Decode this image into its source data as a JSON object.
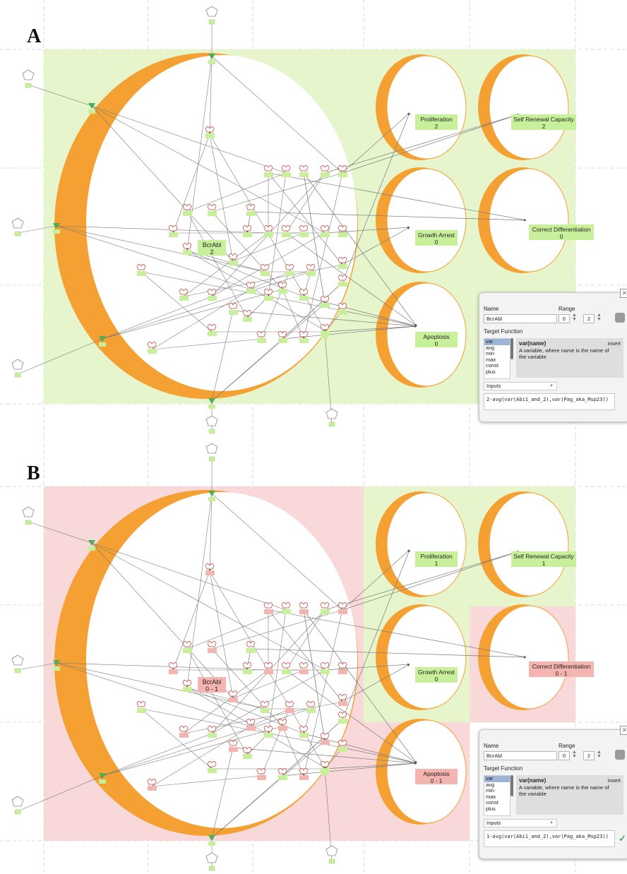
{
  "panels": [
    {
      "label": "A",
      "node_label": "BcrAbl",
      "node_value": "2",
      "background": "#e6f5cc",
      "outcomes": {
        "proliferation": {
          "name": "Proliferation",
          "value": "2"
        },
        "self_renewal": {
          "name": "Self Renewal Capacity",
          "value": "2"
        },
        "growth_arrest": {
          "name": "Growth Arrest",
          "value": "0"
        },
        "correct_diff": {
          "name": "Correct Differentiation",
          "value": "0"
        },
        "apoptosis": {
          "name": "Apoptosis",
          "value": "0"
        }
      },
      "editor": {
        "name_label": "Name",
        "name_value": "BcrAbl",
        "range_label": "Range",
        "range_min": "0",
        "range_max": "2",
        "target_function_label": "Target Function",
        "functions": [
          "var",
          "avg",
          "min",
          "max",
          "const",
          "plus"
        ],
        "selected_function": "var",
        "fn_title": "var(name)",
        "insert_label": "insert",
        "fn_description": "A variable, where name is the name of the variable",
        "inputs_label": "Inputs",
        "expression": "2-avg(var(Abi1_and_2),var(Pag_aka_Msp23))",
        "show_check": false
      }
    },
    {
      "label": "B",
      "node_label": "BcrAbl",
      "node_value": "0 - 1",
      "background": "#f8d8d8",
      "outcomes": {
        "proliferation": {
          "name": "Proliferation",
          "value": "1"
        },
        "self_renewal": {
          "name": "Self Renewal Capacity",
          "value": "1"
        },
        "growth_arrest": {
          "name": "Growth Arrest",
          "value": "0"
        },
        "correct_diff": {
          "name": "Correct Differentiation",
          "value": "0 - 1"
        },
        "apoptosis": {
          "name": "Apoptosis",
          "value": "0 - 1"
        }
      },
      "editor": {
        "name_label": "Name",
        "name_value": "BcrAbl",
        "range_label": "Range",
        "range_min": "0",
        "range_max": "2",
        "target_function_label": "Target Function",
        "functions": [
          "var",
          "avg",
          "min",
          "max",
          "const",
          "plus"
        ],
        "selected_function": "var",
        "fn_title": "var(name)",
        "insert_label": "insert",
        "fn_description": "A variable, where name is the name of the variable",
        "inputs_label": "Inputs",
        "expression": "1-avg(var(Abi1_and_2),var(Pag_aka_Msp23))",
        "show_check": true
      }
    }
  ],
  "colors": {
    "orange": "#f5a033",
    "green_region": "#e6f5cc",
    "red_region": "#f8d8d8",
    "green_label": "#c8f09a",
    "red_label": "#f4b4b0",
    "edge": "#7a7a7a",
    "input_node": "#4caf50"
  }
}
